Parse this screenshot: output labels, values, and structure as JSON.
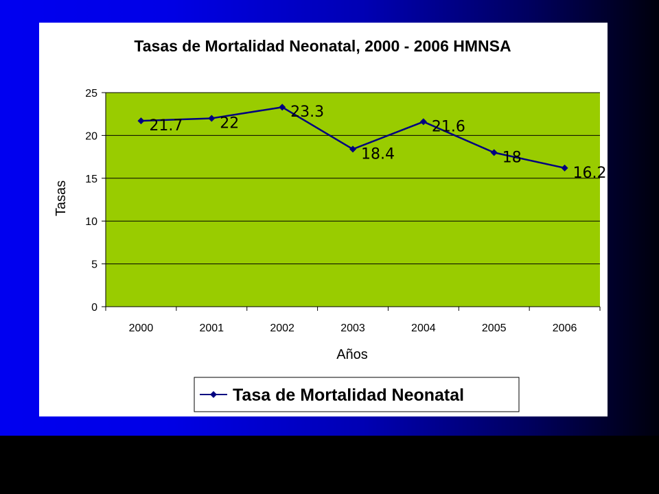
{
  "colors": {
    "plot_background": "#99cc00",
    "series_line": "#000080",
    "gridline": "#000000"
  },
  "chart_data": {
    "type": "line",
    "title": "Tasas de Mortalidad Neonatal, 2000 - 2006 HMNSA",
    "xlabel": "Años",
    "ylabel": "Tasas",
    "categories": [
      "2000",
      "2001",
      "2002",
      "2003",
      "2004",
      "2005",
      "2006"
    ],
    "series": [
      {
        "name": "Tasa de Mortalidad Neonatal",
        "values": [
          21.7,
          22,
          23.3,
          18.4,
          21.6,
          18,
          16.2
        ],
        "labels": [
          "21.7",
          "22",
          "23.3",
          "18.4",
          "21.6",
          "18",
          "16.2"
        ],
        "marker": "diamond"
      }
    ],
    "ylim": [
      0,
      25
    ],
    "yticks": [
      "0",
      "5",
      "10",
      "15",
      "20",
      "25"
    ],
    "grid": true,
    "legend_position": "bottom"
  }
}
